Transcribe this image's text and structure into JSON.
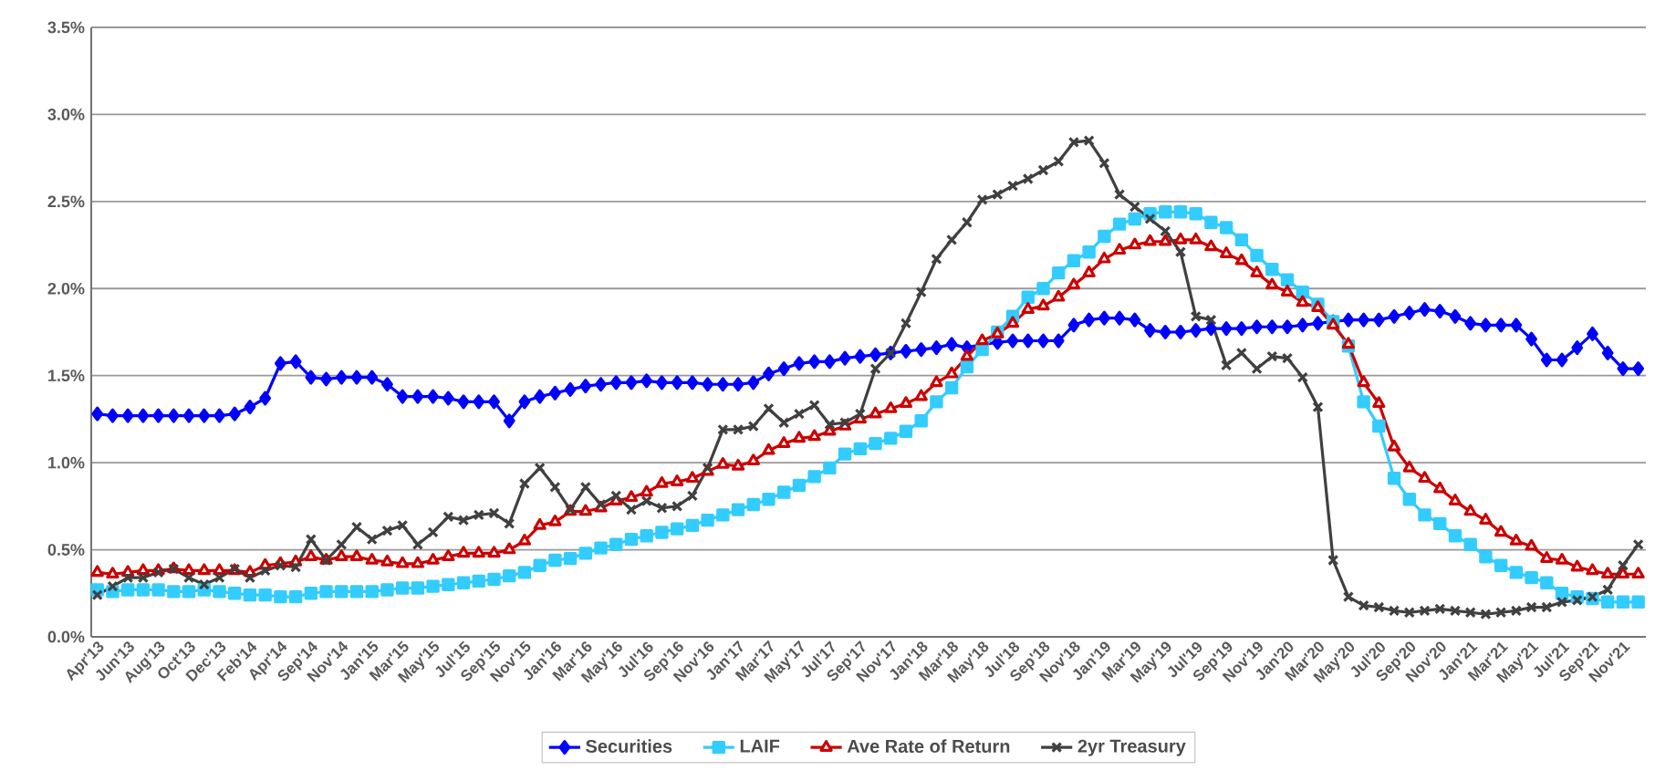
{
  "chart_data": {
    "type": "line",
    "categories": [
      "Apr'13",
      null,
      "Jun'13",
      null,
      "Aug'13",
      null,
      "Oct'13",
      null,
      "Dec'13",
      null,
      "Feb'14",
      null,
      "Apr'14",
      null,
      "Sep'14",
      null,
      "Nov'14",
      null,
      "Jan'15",
      null,
      "Mar'15",
      null,
      "May'15",
      null,
      "Jul'15",
      null,
      "Sep'15",
      null,
      "Nov'15",
      null,
      "Jan'16",
      null,
      "Mar'16",
      null,
      "May'16",
      null,
      "Jul'16",
      null,
      "Sep'16",
      null,
      "Nov'16",
      null,
      "Jan'17",
      null,
      "Mar'17",
      null,
      "May'17",
      null,
      "Jul'17",
      null,
      "Sep'17",
      null,
      "Nov'17",
      null,
      "Jan'18",
      null,
      "Mar'18",
      null,
      "May'18",
      null,
      "Jul'18",
      null,
      "Sep'18",
      null,
      "Nov'18",
      null,
      "Jan'19",
      null,
      "Mar'19",
      null,
      "May'19",
      null,
      "Jul'19",
      null,
      "Sep'19",
      null,
      "Nov'19",
      null,
      "Jan'20",
      null,
      "Mar'20",
      null,
      "May'20",
      null,
      "Jul'20",
      null,
      "Sep'20",
      null,
      "Nov'20",
      null,
      "Jan'21",
      null,
      "Mar'21",
      null,
      "May'21",
      null,
      "Jul'21",
      null,
      "Sep'21",
      null,
      "Nov'21",
      null
    ],
    "series": [
      {
        "name": "Securities",
        "color": "#0000ff",
        "marker": "diamond",
        "values": [
          1.28,
          1.27,
          1.27,
          1.27,
          1.27,
          1.27,
          1.27,
          1.27,
          1.27,
          1.28,
          1.32,
          1.37,
          1.57,
          1.58,
          1.49,
          1.48,
          1.49,
          1.49,
          1.49,
          1.45,
          1.38,
          1.38,
          1.38,
          1.37,
          1.35,
          1.35,
          1.35,
          1.24,
          1.35,
          1.38,
          1.4,
          1.42,
          1.44,
          1.45,
          1.46,
          1.46,
          1.47,
          1.46,
          1.46,
          1.46,
          1.45,
          1.45,
          1.45,
          1.46,
          1.51,
          1.54,
          1.57,
          1.58,
          1.58,
          1.6,
          1.61,
          1.62,
          1.63,
          1.64,
          1.65,
          1.66,
          1.68,
          1.66,
          1.68,
          1.69,
          1.7,
          1.7,
          1.7,
          1.7,
          1.79,
          1.82,
          1.83,
          1.83,
          1.82,
          1.76,
          1.75,
          1.75,
          1.76,
          1.77,
          1.77,
          1.77,
          1.78,
          1.78,
          1.78,
          1.79,
          1.8,
          1.81,
          1.82,
          1.82,
          1.82,
          1.84,
          1.86,
          1.88,
          1.87,
          1.84,
          1.8,
          1.79,
          1.79,
          1.79,
          1.71,
          1.59,
          1.59,
          1.66,
          1.74,
          1.63,
          1.54,
          1.54
        ]
      },
      {
        "name": "LAIF",
        "color": "#33ccff",
        "marker": "square",
        "values": [
          0.27,
          0.26,
          0.27,
          0.27,
          0.27,
          0.26,
          0.26,
          0.27,
          0.26,
          0.25,
          0.24,
          0.24,
          0.23,
          0.23,
          0.25,
          0.26,
          0.26,
          0.26,
          0.26,
          0.27,
          0.28,
          0.28,
          0.29,
          0.3,
          0.31,
          0.32,
          0.33,
          0.35,
          0.37,
          0.41,
          0.44,
          0.45,
          0.48,
          0.51,
          0.53,
          0.56,
          0.58,
          0.6,
          0.62,
          0.64,
          0.67,
          0.7,
          0.73,
          0.76,
          0.79,
          0.83,
          0.87,
          0.92,
          0.97,
          1.05,
          1.08,
          1.11,
          1.14,
          1.18,
          1.24,
          1.35,
          1.43,
          1.55,
          1.65,
          1.75,
          1.84,
          1.95,
          2.0,
          2.09,
          2.16,
          2.21,
          2.3,
          2.37,
          2.4,
          2.43,
          2.44,
          2.44,
          2.43,
          2.38,
          2.35,
          2.28,
          2.19,
          2.11,
          2.05,
          1.98,
          1.91,
          1.81,
          1.67,
          1.35,
          1.21,
          0.91,
          0.79,
          0.7,
          0.65,
          0.58,
          0.53,
          0.46,
          0.41,
          0.37,
          0.34,
          0.31,
          0.25,
          0.23,
          0.22,
          0.2,
          0.2,
          0.2
        ]
      },
      {
        "name": "Ave Rate of Return",
        "color": "#cc0000",
        "marker": "triangle",
        "values": [
          0.37,
          0.36,
          0.37,
          0.38,
          0.38,
          0.39,
          0.38,
          0.38,
          0.38,
          0.38,
          0.37,
          0.41,
          0.42,
          0.43,
          0.46,
          0.44,
          0.46,
          0.46,
          0.44,
          0.43,
          0.42,
          0.42,
          0.44,
          0.46,
          0.48,
          0.48,
          0.48,
          0.5,
          0.55,
          0.64,
          0.66,
          0.72,
          0.72,
          0.74,
          0.78,
          0.8,
          0.83,
          0.88,
          0.89,
          0.91,
          0.95,
          0.99,
          0.98,
          1.01,
          1.07,
          1.11,
          1.14,
          1.15,
          1.18,
          1.21,
          1.25,
          1.28,
          1.31,
          1.34,
          1.38,
          1.46,
          1.51,
          1.61,
          1.7,
          1.74,
          1.8,
          1.88,
          1.9,
          1.95,
          2.02,
          2.09,
          2.17,
          2.22,
          2.25,
          2.27,
          2.27,
          2.28,
          2.28,
          2.24,
          2.2,
          2.16,
          2.09,
          2.02,
          1.98,
          1.92,
          1.89,
          1.79,
          1.68,
          1.46,
          1.34,
          1.09,
          0.97,
          0.91,
          0.85,
          0.78,
          0.72,
          0.67,
          0.6,
          0.55,
          0.52,
          0.45,
          0.44,
          0.4,
          0.38,
          0.36,
          0.36,
          0.36
        ]
      },
      {
        "name": "2yr Treasury",
        "color": "#404040",
        "marker": "cross",
        "values": [
          0.24,
          0.29,
          0.34,
          0.34,
          0.37,
          0.39,
          0.34,
          0.3,
          0.34,
          0.39,
          0.34,
          0.38,
          0.41,
          0.4,
          0.56,
          0.44,
          0.53,
          0.63,
          0.56,
          0.61,
          0.64,
          0.53,
          0.6,
          0.69,
          0.67,
          0.7,
          0.71,
          0.65,
          0.88,
          0.97,
          0.86,
          0.73,
          0.86,
          0.76,
          0.81,
          0.73,
          0.78,
          0.74,
          0.75,
          0.81,
          0.97,
          1.19,
          1.19,
          1.21,
          1.31,
          1.23,
          1.28,
          1.33,
          1.22,
          1.23,
          1.28,
          1.54,
          1.63,
          1.8,
          1.98,
          2.17,
          2.28,
          2.38,
          2.51,
          2.54,
          2.59,
          2.63,
          2.68,
          2.73,
          2.84,
          2.85,
          2.72,
          2.54,
          2.47,
          2.4,
          2.33,
          2.21,
          1.84,
          1.82,
          1.56,
          1.63,
          1.54,
          1.61,
          1.6,
          1.49,
          1.32,
          0.44,
          0.23,
          0.18,
          0.17,
          0.15,
          0.14,
          0.15,
          0.16,
          0.15,
          0.14,
          0.13,
          0.14,
          0.15,
          0.17,
          0.17,
          0.2,
          0.21,
          0.23,
          0.27,
          0.41,
          0.53
        ]
      }
    ],
    "ylim": [
      0,
      3.5
    ],
    "yticks": [
      {
        "value": 0,
        "label": "0.0%"
      },
      {
        "value": 0.5,
        "label": "0.5%"
      },
      {
        "value": 1,
        "label": "1.0%"
      },
      {
        "value": 1.5,
        "label": "1.5%"
      },
      {
        "value": 2,
        "label": "2.0%"
      },
      {
        "value": 2.5,
        "label": "2.5%"
      },
      {
        "value": 3,
        "label": "3.0%"
      },
      {
        "value": 3.5,
        "label": "3.5%"
      }
    ],
    "grid": "y",
    "legend": "bottom"
  }
}
